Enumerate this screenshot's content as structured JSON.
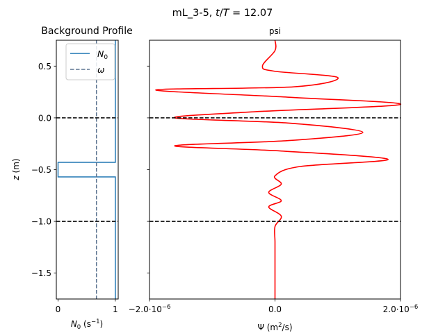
{
  "figure": {
    "title_prefix": "mL_3-5, ",
    "title_var_t": "t",
    "title_slash": "/",
    "title_var_T": "T",
    "title_suffix": " = 12.07"
  },
  "chart_data": [
    {
      "type": "line",
      "title": "Background Profile",
      "xlabel_var": "N",
      "xlabel_sub": "0",
      "xlabel_unit_open": " (s",
      "xlabel_unit_exp": "−1",
      "xlabel_unit_close": ")",
      "ylabel_var": "z",
      "ylabel_unit": " (m)",
      "xlim": [
        -0.03,
        1.05
      ],
      "ylim": [
        -1.75,
        0.75
      ],
      "xticks": [
        {
          "value": 0,
          "label": "0"
        },
        {
          "value": 1,
          "label": "1"
        }
      ],
      "yticks": [
        {
          "value": 0.5,
          "label": "0.5"
        },
        {
          "value": 0.0,
          "label": "0.0"
        },
        {
          "value": -0.5,
          "label": "−0.5"
        },
        {
          "value": -1.0,
          "label": "−1.0"
        },
        {
          "value": -1.5,
          "label": "−1.5"
        }
      ],
      "series": [
        {
          "name": "N0",
          "legend_var": "N",
          "legend_sub": "0",
          "color": "#1f77b4",
          "style": "solid",
          "x": [
            1.0,
            1.0,
            0.0,
            0.0,
            1.0,
            1.0
          ],
          "y": [
            0.75,
            -0.43,
            -0.43,
            -0.57,
            -0.57,
            -1.75
          ]
        },
        {
          "name": "omega",
          "legend_label": "ω",
          "color": "#5b7390",
          "style": "dashed",
          "x": [
            0.67,
            0.67
          ],
          "y": [
            0.75,
            -1.75
          ]
        }
      ],
      "hlines": [
        {
          "y": 0.0,
          "color": "#000000",
          "style": "dashed"
        },
        {
          "y": -1.0,
          "color": "#000000",
          "style": "dashed"
        }
      ],
      "legend": "top-right"
    },
    {
      "type": "line",
      "title": "psi",
      "xlabel_prefix": "Ψ (m",
      "xlabel_exp": "2",
      "xlabel_suffix": "/s)",
      "xlim": [
        -2e-06,
        2e-06
      ],
      "ylim": [
        -1.75,
        0.75
      ],
      "xticks": [
        {
          "value": -2e-06,
          "label_base": "−2.0·10",
          "label_exp": "−6"
        },
        {
          "value": 0,
          "label_base": "0.0",
          "label_exp": ""
        },
        {
          "value": 2e-06,
          "label_base": "2.0·10",
          "label_exp": "−6"
        }
      ],
      "yticks": [
        0.5,
        0.0,
        -0.5,
        -1.0,
        -1.5
      ],
      "series": [
        {
          "name": "psi",
          "color": "#ff0000",
          "style": "solid",
          "x": [
            0.0,
            0.0,
            -2e-07,
            0.0,
            1e-06,
            3e-07,
            -1.9e-06,
            2e-07,
            2e-06,
            -3e-07,
            -1.6e-06,
            2e-07,
            1.4e-06,
            2e-07,
            -1.6e-06,
            1e-07,
            1.8e-06,
            4e-07,
            0.0,
            1e-07,
            -1e-07,
            1e-07,
            -1e-07,
            1e-07,
            0.0,
            0.0,
            0.0,
            0.0
          ],
          "y": [
            0.75,
            0.65,
            0.5,
            0.45,
            0.39,
            0.3,
            0.27,
            0.2,
            0.13,
            0.06,
            0.0,
            -0.05,
            -0.14,
            -0.22,
            -0.27,
            -0.32,
            -0.4,
            -0.47,
            -0.56,
            -0.64,
            -0.72,
            -0.8,
            -0.86,
            -0.95,
            -1.05,
            -1.2,
            -1.4,
            -1.75
          ]
        }
      ],
      "hlines": [
        {
          "y": 0.0,
          "color": "#000000",
          "style": "dashed"
        },
        {
          "y": -1.0,
          "color": "#000000",
          "style": "dashed"
        }
      ]
    }
  ]
}
